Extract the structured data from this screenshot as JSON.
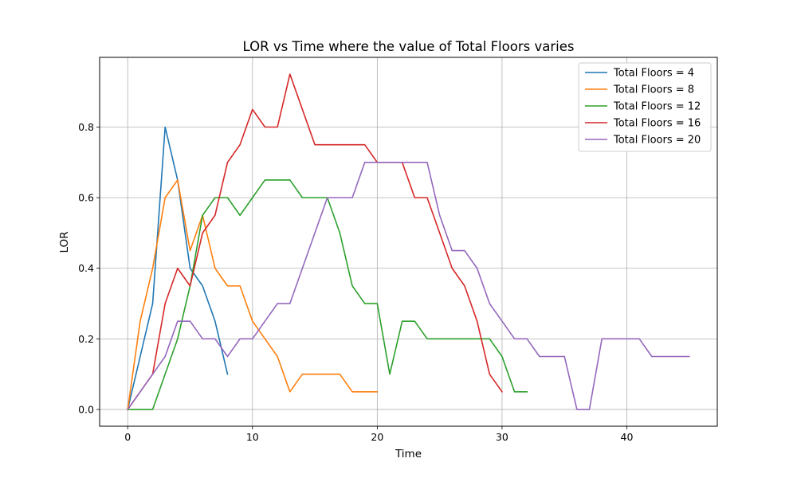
{
  "chart_data": {
    "type": "line",
    "title": "LOR vs Time where the value of Total Floors varies",
    "xlabel": "Time",
    "ylabel": "LOR",
    "xlim": [
      -2.25,
      47.25
    ],
    "ylim": [
      -0.0475,
      0.9975
    ],
    "grid": true,
    "legend_position": "top-right",
    "x_ticks": [
      0,
      10,
      20,
      30,
      40
    ],
    "x_tick_labels": [
      "0",
      "10",
      "20",
      "30",
      "40"
    ],
    "y_ticks": [
      0.0,
      0.2,
      0.4,
      0.6,
      0.8
    ],
    "y_tick_labels": [
      "0.0",
      "0.2",
      "0.4",
      "0.6",
      "0.8"
    ],
    "series": [
      {
        "name": "Total Floors = 4",
        "color": "#1f77b4",
        "x": [
          0,
          1,
          2,
          3,
          4,
          5,
          6,
          7,
          8
        ],
        "values": [
          0.0,
          0.15,
          0.3,
          0.8,
          0.65,
          0.4,
          0.35,
          0.25,
          0.1
        ]
      },
      {
        "name": "Total Floors = 8",
        "color": "#ff7f0e",
        "x": [
          0,
          1,
          2,
          3,
          4,
          5,
          6,
          7,
          8,
          9,
          10,
          11,
          12,
          13,
          14,
          15,
          16,
          17,
          18,
          19,
          20
        ],
        "values": [
          0.0,
          0.25,
          0.4,
          0.6,
          0.65,
          0.45,
          0.55,
          0.4,
          0.35,
          0.35,
          0.25,
          0.2,
          0.15,
          0.05,
          0.1,
          0.1,
          0.1,
          0.1,
          0.05,
          0.05,
          0.05
        ]
      },
      {
        "name": "Total Floors = 12",
        "color": "#2ca02c",
        "x": [
          0,
          1,
          2,
          3,
          4,
          5,
          6,
          7,
          8,
          9,
          10,
          11,
          12,
          13,
          14,
          15,
          16,
          17,
          18,
          19,
          20,
          21,
          22,
          23,
          24,
          25,
          26,
          27,
          28,
          29,
          30,
          31,
          32
        ],
        "values": [
          0.0,
          0.0,
          0.0,
          0.1,
          0.2,
          0.35,
          0.55,
          0.6,
          0.6,
          0.55,
          0.6,
          0.65,
          0.65,
          0.65,
          0.6,
          0.6,
          0.6,
          0.5,
          0.35,
          0.3,
          0.3,
          0.1,
          0.25,
          0.25,
          0.2,
          0.2,
          0.2,
          0.2,
          0.2,
          0.2,
          0.15,
          0.05,
          0.05
        ]
      },
      {
        "name": "Total Floors = 16",
        "color": "#d62728",
        "x": [
          0,
          1,
          2,
          3,
          4,
          5,
          6,
          7,
          8,
          9,
          10,
          11,
          12,
          13,
          14,
          15,
          16,
          17,
          18,
          19,
          20,
          21,
          22,
          23,
          24,
          25,
          26,
          27,
          28,
          29,
          30
        ],
        "values": [
          0.0,
          0.05,
          0.1,
          0.3,
          0.4,
          0.35,
          0.5,
          0.55,
          0.7,
          0.75,
          0.85,
          0.8,
          0.8,
          0.95,
          0.85,
          0.75,
          0.75,
          0.75,
          0.75,
          0.75,
          0.7,
          0.7,
          0.7,
          0.6,
          0.6,
          0.5,
          0.4,
          0.35,
          0.25,
          0.1,
          0.05
        ]
      },
      {
        "name": "Total Floors = 20",
        "color": "#9467bd",
        "x": [
          0,
          1,
          2,
          3,
          4,
          5,
          6,
          7,
          8,
          9,
          10,
          11,
          12,
          13,
          14,
          15,
          16,
          17,
          18,
          19,
          20,
          21,
          22,
          23,
          24,
          25,
          26,
          27,
          28,
          29,
          30,
          31,
          32,
          33,
          34,
          35,
          36,
          37,
          38,
          39,
          40,
          41,
          42,
          43,
          44,
          45
        ],
        "values": [
          0.0,
          0.05,
          0.1,
          0.15,
          0.25,
          0.25,
          0.2,
          0.2,
          0.15,
          0.2,
          0.2,
          0.25,
          0.3,
          0.3,
          0.4,
          0.5,
          0.6,
          0.6,
          0.6,
          0.7,
          0.7,
          0.7,
          0.7,
          0.7,
          0.7,
          0.55,
          0.45,
          0.45,
          0.4,
          0.3,
          0.25,
          0.2,
          0.2,
          0.15,
          0.15,
          0.15,
          0.0,
          0.0,
          0.2,
          0.2,
          0.2,
          0.2,
          0.15,
          0.15,
          0.15,
          0.15
        ]
      }
    ]
  }
}
